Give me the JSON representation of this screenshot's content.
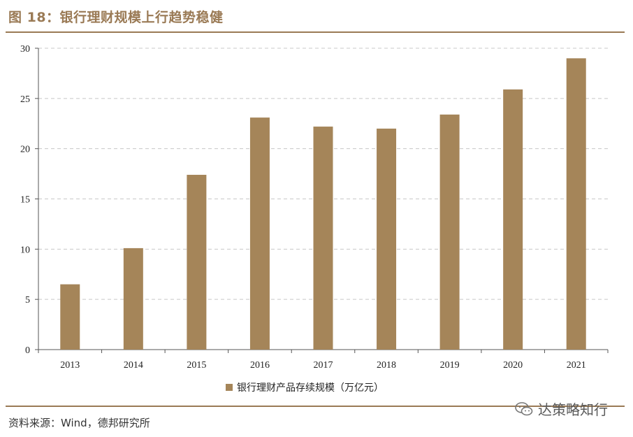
{
  "header": {
    "figure_title": "图 18：银行理财规模上行趋势稳健"
  },
  "footer": {
    "source": "资料来源：Wind，德邦研究所",
    "watermark_text": "达策略知行",
    "watermark_icon": "wechat-icon"
  },
  "chart_data": {
    "type": "bar",
    "categories": [
      "2013",
      "2014",
      "2015",
      "2016",
      "2017",
      "2018",
      "2019",
      "2020",
      "2021"
    ],
    "series": [
      {
        "name": "银行理财产品存续规模（万亿元）",
        "values": [
          6.5,
          10.1,
          17.4,
          23.1,
          22.2,
          22.0,
          23.4,
          25.9,
          29.0
        ],
        "color": "#a58559"
      }
    ],
    "yticks": [
      "0",
      "5",
      "10",
      "15",
      "20",
      "25",
      "30"
    ],
    "ylim": [
      0,
      30
    ],
    "grid": true,
    "legend": "bottom-center"
  }
}
